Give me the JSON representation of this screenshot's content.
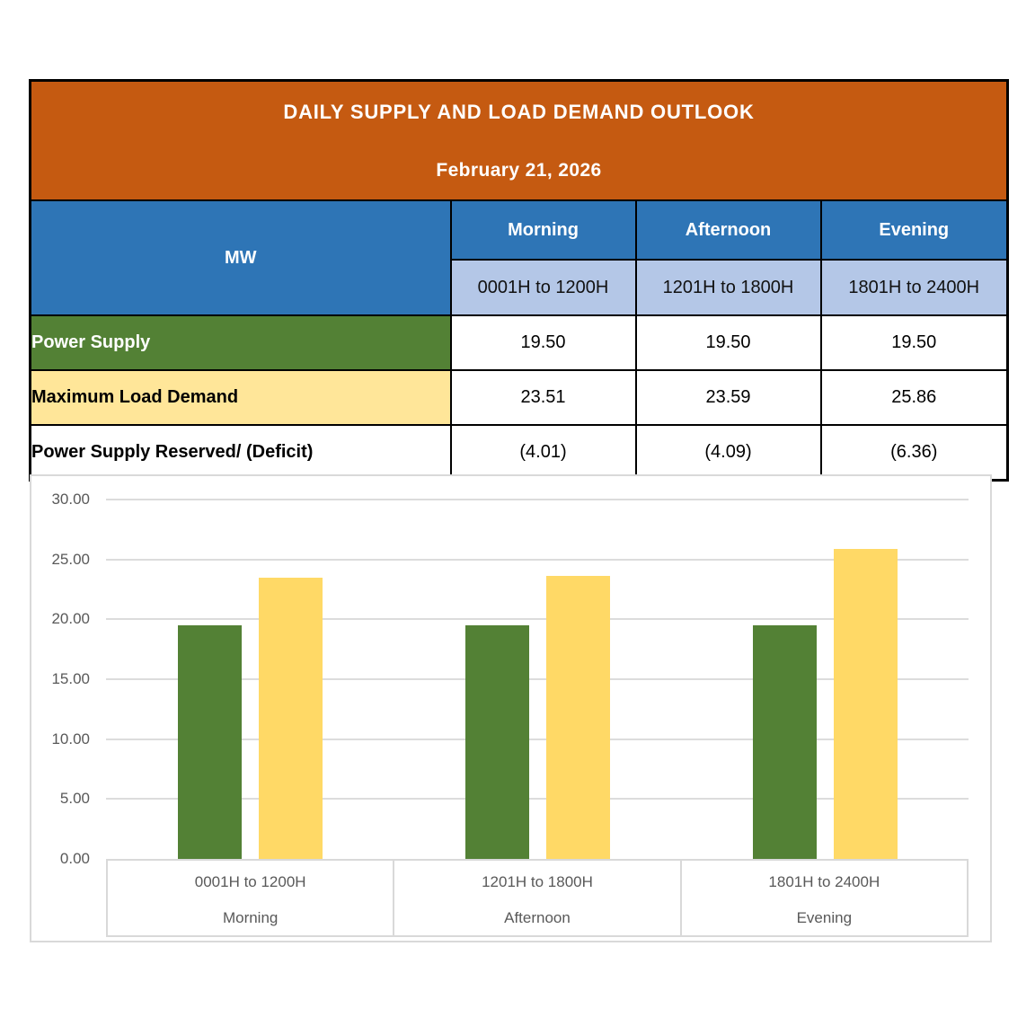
{
  "table": {
    "title": "DAILY SUPPLY AND LOAD DEMAND OUTLOOK",
    "date": "February 21, 2026",
    "unit_label": "MW",
    "periods": [
      {
        "name": "Morning",
        "range": "0001H to 1200H"
      },
      {
        "name": "Afternoon",
        "range": "1201H to 1800H"
      },
      {
        "name": "Evening",
        "range": "1801H to 2400H"
      }
    ],
    "rows": [
      {
        "label": "Power Supply",
        "values": [
          "19.50",
          "19.50",
          "19.50"
        ]
      },
      {
        "label": "Maximum Load Demand",
        "values": [
          "23.51",
          "23.59",
          "25.86"
        ]
      },
      {
        "label": "Power Supply Reserved/ (Deficit)",
        "values": [
          "(4.01)",
          "(4.09)",
          "(6.36)"
        ]
      }
    ],
    "colors": {
      "header_bg": "#C55A11",
      "period_bg": "#2E75B6",
      "range_bg": "#B4C7E7",
      "supply_bg": "#538135",
      "demand_bg": "#FFE699",
      "border": "#000000"
    }
  },
  "chart_data": {
    "type": "bar",
    "categories": [
      {
        "range": "0001H to 1200H",
        "period": "Morning"
      },
      {
        "range": "1201H to 1800H",
        "period": "Afternoon"
      },
      {
        "range": "1801H to 2400H",
        "period": "Evening"
      }
    ],
    "series": [
      {
        "name": "Power Supply",
        "color": "#538135",
        "values": [
          19.5,
          19.5,
          19.5
        ]
      },
      {
        "name": "Maximum Load Demand",
        "color": "#FFD966",
        "values": [
          23.51,
          23.59,
          25.86
        ]
      }
    ],
    "ylim": [
      0,
      30
    ],
    "ytick_interval": 5,
    "ytick_decimals": 2,
    "ylabel": "",
    "xlabel": "",
    "grid": true,
    "legend": "none",
    "axis_color": "#595959",
    "gridline_color": "#DCDCDC"
  }
}
